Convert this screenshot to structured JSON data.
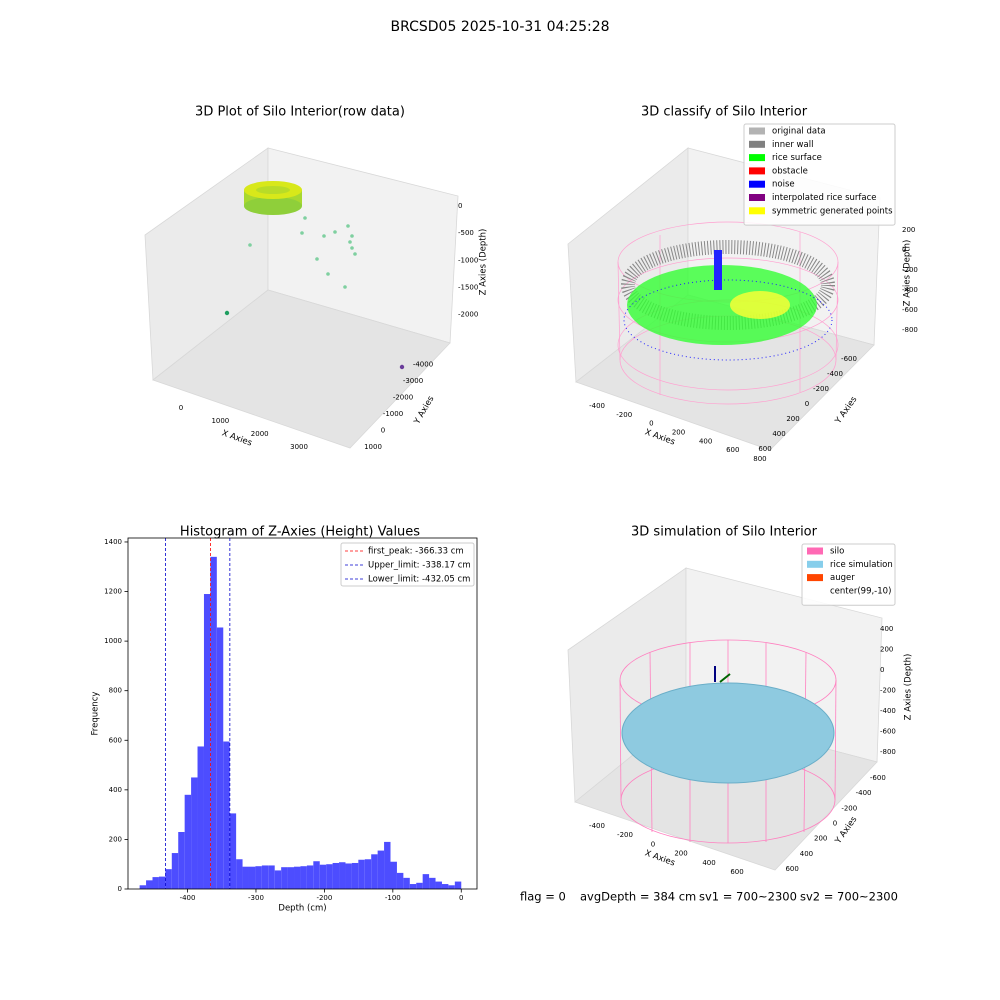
{
  "title": "BRCSD05 2025-10-31 04:25:28",
  "chart_data": [
    {
      "type": "scatter3d",
      "title": "3D Plot of Silo Interior(row data)",
      "xlabel": "X Axies",
      "ylabel": "Y Axies",
      "zlabel": "Z Axies (Depth)",
      "xlim": [
        -700,
        3800
      ],
      "xticks": [
        0,
        1000,
        2000,
        3000
      ],
      "ylim": [
        -4500,
        1500
      ],
      "yticks": [
        -4000,
        -3000,
        -2000,
        -1000,
        0,
        1000
      ],
      "zlim": [
        -2300,
        200
      ],
      "zticks": [
        -2000,
        -1500,
        -1000,
        -500,
        0
      ]
    },
    {
      "type": "scatter3d",
      "title": "3D classify of Silo Interior",
      "xlabel": "X Axies",
      "ylabel": "Y Axies",
      "zlabel": "Z Axies (Depth)",
      "xlim": [
        -500,
        900
      ],
      "xticks": [
        -400,
        -200,
        0,
        200,
        400,
        600,
        800
      ],
      "ylim": [
        -700,
        700
      ],
      "yticks": [
        -600,
        -400,
        -200,
        0,
        200,
        400,
        600
      ],
      "zlim": [
        -900,
        300
      ],
      "zticks": [
        -800,
        -600,
        -400,
        -200,
        0,
        200
      ],
      "legend": [
        {
          "name": "original data",
          "color": "#b3b3b3"
        },
        {
          "name": "inner wall",
          "color": "#808080"
        },
        {
          "name": "rice surface",
          "color": "#00ff00"
        },
        {
          "name": "obstacle",
          "color": "#ff0000"
        },
        {
          "name": "noise",
          "color": "#0000ff"
        },
        {
          "name": "interpolated rice surface",
          "color": "#800080"
        },
        {
          "name": "symmetric generated points",
          "color": "#ffff00"
        }
      ]
    },
    {
      "type": "histogram",
      "title": "Histogram of Z-Axies (Height) Values",
      "xlabel": "Depth (cm)",
      "ylabel": "Frequency",
      "color": "#4d4dff",
      "bins": [
        -470,
        -460.6,
        -451.2,
        -441.8,
        -432.4,
        -423,
        -413.6,
        -404.2,
        -394.8,
        -385.4,
        -376,
        -366.6,
        -357.2,
        -347.8,
        -338.4,
        -329,
        -319.6,
        -310.2,
        -300.8,
        -291.4,
        -282,
        -272.6,
        -263.2,
        -253.8,
        -244.4,
        -235,
        -225.6,
        -216.2,
        -206.8,
        -197.4,
        -188,
        -178.6,
        -169.2,
        -159.8,
        -150.4,
        -141,
        -131.6,
        -122.2,
        -112.8,
        -103.4,
        -94,
        -84.6,
        -75.2,
        -65.8,
        -56.4,
        -47,
        -37.6,
        -28.2,
        -18.8,
        -9.4,
        0
      ],
      "counts": [
        15,
        35,
        48,
        50,
        80,
        145,
        230,
        380,
        450,
        575,
        1190,
        1340,
        1055,
        595,
        305,
        120,
        90,
        90,
        92,
        95,
        95,
        75,
        88,
        88,
        90,
        92,
        95,
        112,
        98,
        100,
        105,
        108,
        103,
        105,
        118,
        120,
        140,
        155,
        190,
        110,
        65,
        45,
        20,
        25,
        60,
        45,
        30,
        20,
        15,
        30
      ],
      "xlim": [
        -487,
        23
      ],
      "xticks": [
        -400,
        -300,
        -200,
        -100,
        0
      ],
      "ylim": [
        0,
        1416
      ],
      "yticks": [
        0,
        200,
        400,
        600,
        800,
        1000,
        1200,
        1400
      ],
      "vlines": [
        {
          "name": "first_peak: -366.33 cm",
          "value": -366.33,
          "color": "#ff0000"
        },
        {
          "name": "Upper_limit: -338.17 cm",
          "value": -338.17,
          "color": "#0000cc"
        },
        {
          "name": "Lower_limit: -432.05 cm",
          "value": -432.05,
          "color": "#0000cc"
        }
      ]
    },
    {
      "type": "surface3d",
      "title": "3D simulation of Silo Interior",
      "xlabel": "X Axies",
      "ylabel": "Y Axies",
      "zlabel": "Z Axies (Depth)",
      "xlim": [
        -500,
        700
      ],
      "xticks": [
        -400,
        -200,
        0,
        200,
        400,
        600
      ],
      "ylim": [
        -700,
        700
      ],
      "yticks": [
        -600,
        -400,
        -200,
        0,
        200,
        400,
        600
      ],
      "zlim": [
        -900,
        500
      ],
      "zticks": [
        -800,
        -600,
        -400,
        -200,
        0,
        200,
        400
      ],
      "legend": [
        {
          "name": "silo",
          "color": "#ff69b4"
        },
        {
          "name": "rice simulation",
          "color": "#87ceeb"
        },
        {
          "name": "auger",
          "color": "#ff4500"
        },
        {
          "name": "center(99,-10)"
        }
      ]
    }
  ],
  "footer": [
    "flag = 0",
    "avgDepth = 384 cm",
    "sv1 = 700~2300",
    "sv2 = 700~2300"
  ]
}
